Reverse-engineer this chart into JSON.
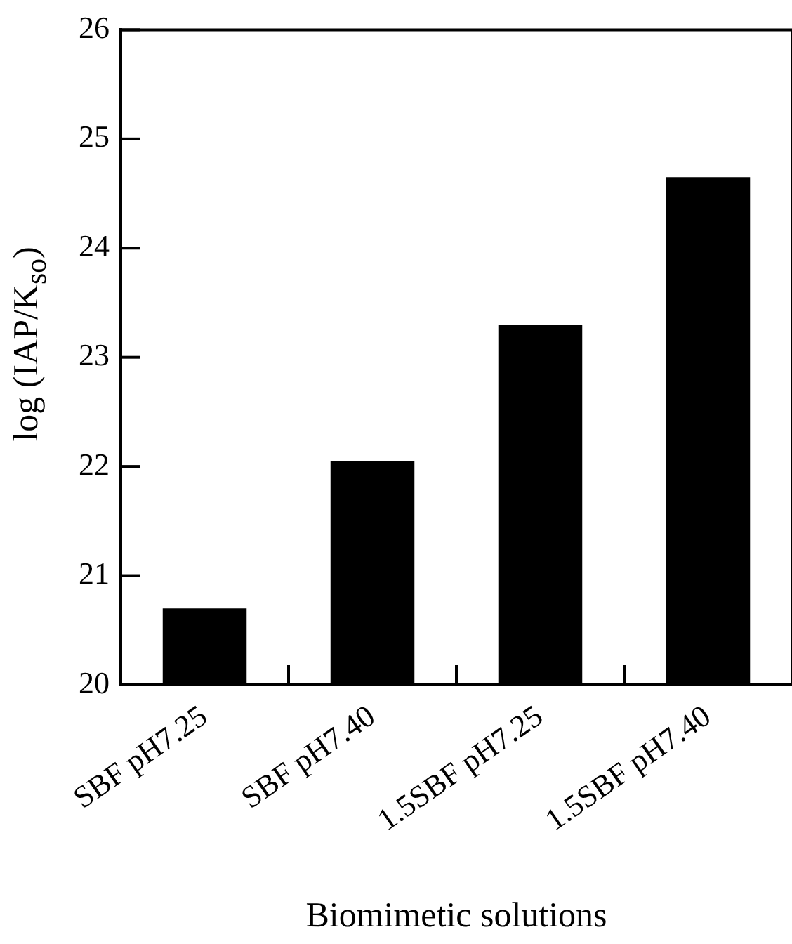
{
  "chart_data": {
    "type": "bar",
    "categories": [
      "SBF pH7.25",
      "SBF pH7.40",
      "1.5SBF pH7.25",
      "1.5SBF pH7.40"
    ],
    "values": [
      20.7,
      22.05,
      23.3,
      24.65
    ],
    "color": "#000000",
    "ylim": [
      20,
      26
    ],
    "yticks": [
      20,
      21,
      22,
      23,
      24,
      25,
      26
    ],
    "xlabel": "Biomimetic solutions",
    "ylabel": "log (IAP/K$_{so}$)",
    "grid": false,
    "legend": false
  }
}
